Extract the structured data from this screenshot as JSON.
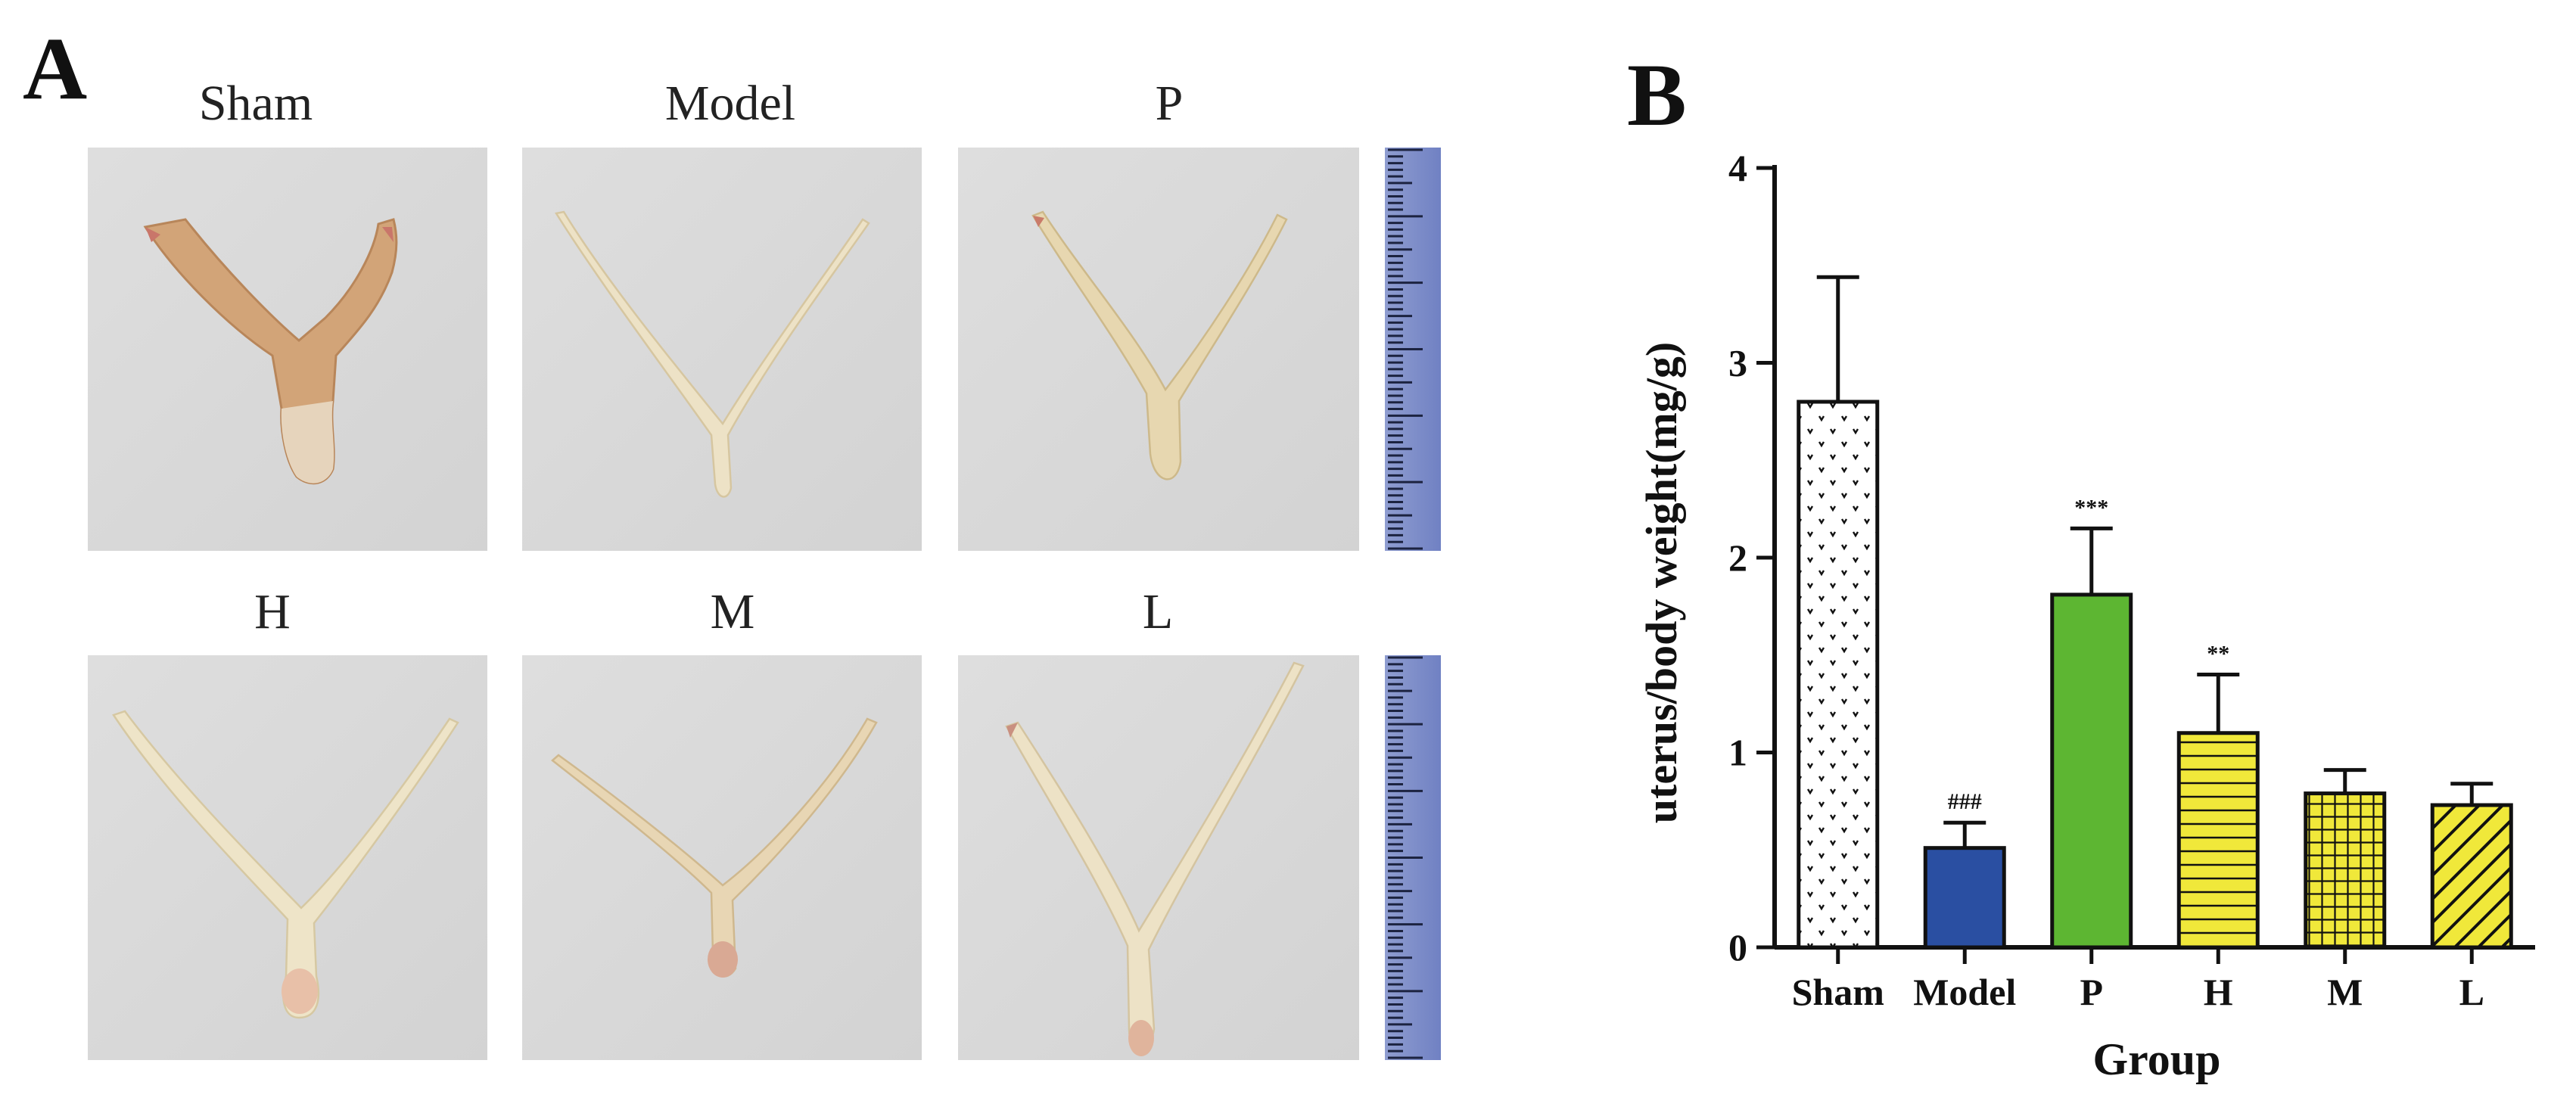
{
  "panel_a": {
    "letter": "A",
    "photos": [
      {
        "label": "Sham"
      },
      {
        "label": "Model"
      },
      {
        "label": "P"
      },
      {
        "label": "H"
      },
      {
        "label": "M"
      },
      {
        "label": "L"
      }
    ]
  },
  "panel_b": {
    "letter": "B"
  },
  "chart_data": {
    "type": "bar",
    "xlabel": "Group",
    "ylabel": "uterus/body weight(mg/g)",
    "ylim": [
      0,
      4
    ],
    "yticks": [
      "0",
      "1",
      "2",
      "3",
      "4"
    ],
    "categories": [
      "Sham",
      "Model",
      "P",
      "H",
      "M",
      "L"
    ],
    "values": [
      2.8,
      0.51,
      1.81,
      1.1,
      0.79,
      0.73
    ],
    "errors": [
      0.64,
      0.13,
      0.34,
      0.3,
      0.12,
      0.11
    ],
    "annotations": [
      "",
      "###",
      "***",
      "**",
      "",
      ""
    ],
    "colors": [
      "#ffffff",
      "#2a4fa2",
      "#5db632",
      "#f0e83a",
      "#f0e83a",
      "#f0e83a"
    ],
    "patterns": [
      "dots",
      "solid",
      "solid",
      "horizontal-lines",
      "grid",
      "diagonal-lines"
    ],
    "grid": false
  }
}
